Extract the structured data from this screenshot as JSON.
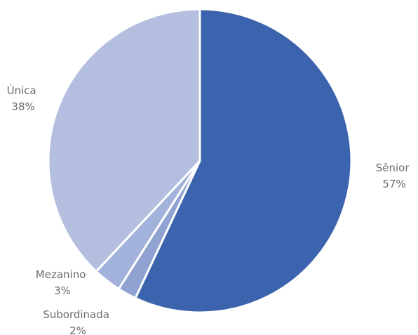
{
  "chart_data": {
    "type": "pie",
    "title": "",
    "start_angle_deg": 0,
    "direction": "clockwise",
    "slices": [
      {
        "label": "Sênior",
        "value": 57,
        "value_label": "57%",
        "color": "#3c63ad"
      },
      {
        "label": "Subordinada",
        "value": 2,
        "value_label": "2%",
        "color": "#8fa2d2"
      },
      {
        "label": "Mezanino",
        "value": 3,
        "value_label": "3%",
        "color": "#a3b2da"
      },
      {
        "label": "Única",
        "value": 38,
        "value_label": "38%",
        "color": "#b4bfdf"
      }
    ],
    "legend": "none",
    "label_position": "outside"
  }
}
